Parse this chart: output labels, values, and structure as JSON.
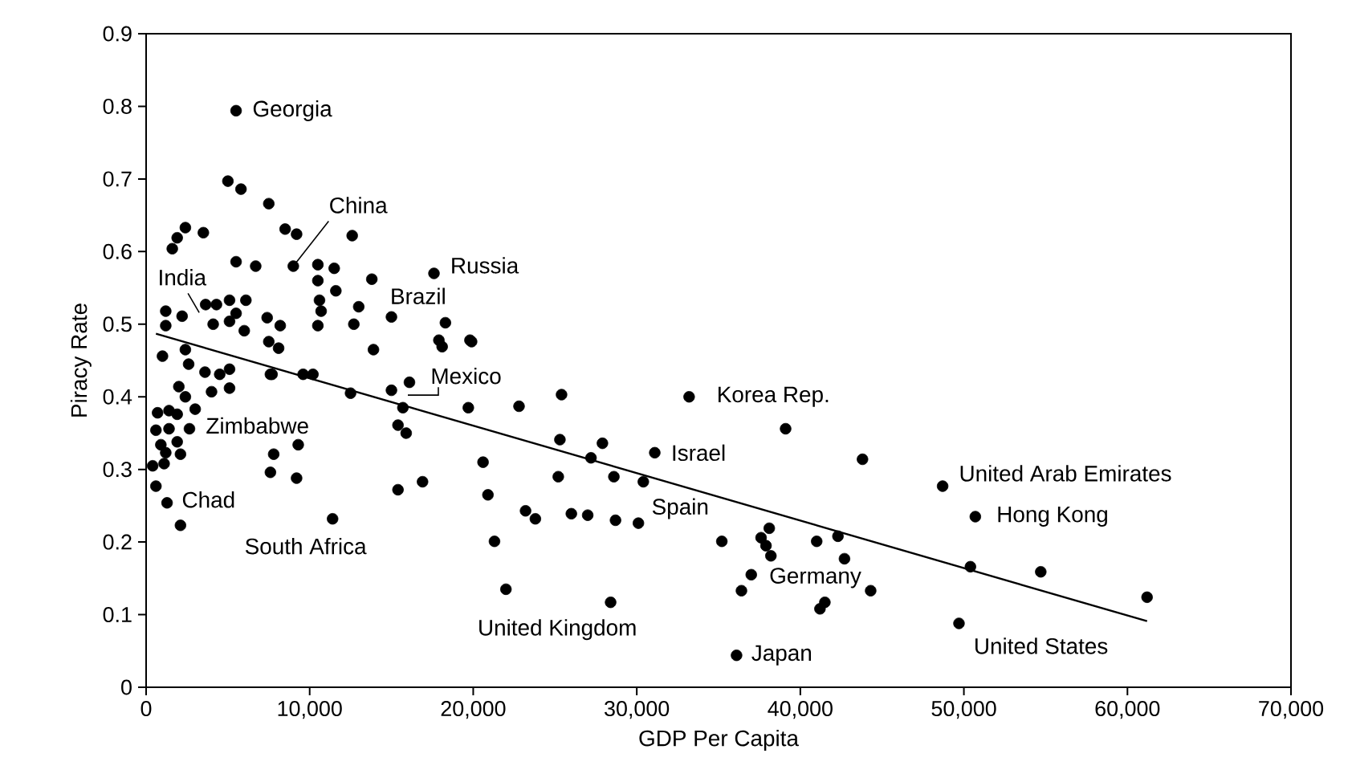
{
  "chart_data": {
    "type": "scatter",
    "xlabel": "GDP Per Capita",
    "ylabel": "Piracy Rate",
    "xlim": [
      0,
      70000
    ],
    "ylim": [
      0,
      0.9
    ],
    "xticks": [
      0,
      {
        "value": 10000,
        "label": "10,000"
      },
      {
        "value": 20000,
        "label": "20,000"
      },
      {
        "value": 30000,
        "label": "30,000"
      },
      {
        "value": 40000,
        "label": "40,000"
      },
      {
        "value": 50000,
        "label": "50,000"
      },
      {
        "value": 60000,
        "label": "60,000"
      },
      {
        "value": 70000,
        "label": "70,000"
      }
    ],
    "yticks": [
      0,
      0.1,
      0.2,
      0.3,
      0.4,
      0.5,
      0.6,
      0.7,
      0.8,
      0.9
    ],
    "grid": false,
    "series": [
      {
        "type": "scatter",
        "color": "#000000",
        "marker": "circle",
        "x": [
          5500,
          9000,
          17600,
          3640,
          15000,
          16100,
          2650,
          1280,
          11400,
          28400,
          36100,
          33200,
          31100,
          30100,
          37000,
          48700,
          50700,
          49700,
          50400,
          54700,
          61200,
          44300,
          19900,
          19700,
          22800,
          25400,
          25300,
          27900,
          27200,
          20600,
          25200,
          28600,
          30400,
          20900,
          23200,
          23800,
          26000,
          27000,
          28700,
          21300,
          22000,
          35200,
          38100,
          37600,
          37900,
          38200,
          41000,
          42300,
          42700,
          36400,
          39100,
          43800,
          41500,
          41200,
          5000,
          5800,
          7500,
          8500,
          9200,
          12600,
          2400,
          3500,
          1900,
          1600,
          5500,
          6700,
          10500,
          11500,
          10500,
          11600,
          13800,
          10600,
          10700,
          10500,
          13000,
          12700,
          18300,
          17900,
          19800,
          18100,
          13900,
          1200,
          2200,
          4300,
          5100,
          6100,
          4100,
          5100,
          6000,
          7400,
          8200,
          5500,
          1200,
          1000,
          2400,
          2600,
          3600,
          4500,
          5100,
          7500,
          8100,
          7700,
          9600,
          10200,
          2000,
          2400,
          4000,
          5100,
          7600,
          12500,
          15000,
          15700,
          15400,
          15900,
          700,
          1400,
          1900,
          3000,
          600,
          1400,
          900,
          1900,
          1200,
          2100,
          400,
          1100,
          600,
          2100,
          7800,
          9300,
          7600,
          9200,
          15400,
          16900
        ],
        "values": [
          0.794,
          0.58,
          0.57,
          0.527,
          0.51,
          0.42,
          0.356,
          0.254,
          0.232,
          0.117,
          0.044,
          0.4,
          0.323,
          0.226,
          0.155,
          0.277,
          0.235,
          0.088,
          0.166,
          0.159,
          0.124,
          0.133,
          0.476,
          0.385,
          0.387,
          0.403,
          0.341,
          0.336,
          0.316,
          0.31,
          0.29,
          0.29,
          0.283,
          0.265,
          0.243,
          0.232,
          0.239,
          0.237,
          0.23,
          0.201,
          0.135,
          0.201,
          0.219,
          0.206,
          0.195,
          0.181,
          0.201,
          0.208,
          0.177,
          0.133,
          0.356,
          0.314,
          0.117,
          0.108,
          0.697,
          0.686,
          0.666,
          0.631,
          0.624,
          0.622,
          0.633,
          0.626,
          0.619,
          0.604,
          0.586,
          0.58,
          0.582,
          0.577,
          0.56,
          0.546,
          0.562,
          0.533,
          0.518,
          0.498,
          0.524,
          0.5,
          0.502,
          0.478,
          0.478,
          0.469,
          0.465,
          0.518,
          0.511,
          0.527,
          0.533,
          0.533,
          0.5,
          0.504,
          0.491,
          0.509,
          0.498,
          0.515,
          0.498,
          0.456,
          0.465,
          0.445,
          0.434,
          0.431,
          0.438,
          0.476,
          0.467,
          0.431,
          0.431,
          0.431,
          0.414,
          0.4,
          0.407,
          0.412,
          0.431,
          0.405,
          0.409,
          0.385,
          0.361,
          0.35,
          0.378,
          0.381,
          0.376,
          0.383,
          0.354,
          0.356,
          0.334,
          0.338,
          0.323,
          0.321,
          0.305,
          0.308,
          0.277,
          0.223,
          0.321,
          0.334,
          0.296,
          0.288,
          0.272,
          0.283
        ]
      },
      {
        "type": "line",
        "color": "#000000",
        "x": [
          600,
          61200
        ],
        "values": [
          0.487,
          0.091
        ]
      }
    ],
    "annotations": [
      {
        "text": "Georgia",
        "x": 5500,
        "y": 0.794
      },
      {
        "text": "China",
        "x": 9000,
        "y": 0.58
      },
      {
        "text": "Russia",
        "x": 17600,
        "y": 0.57
      },
      {
        "text": "India",
        "x": 3640,
        "y": 0.527
      },
      {
        "text": "Brazil",
        "x": 15000,
        "y": 0.51
      },
      {
        "text": "Mexico",
        "x": 16100,
        "y": 0.42
      },
      {
        "text": "Zimbabwe",
        "x": 2650,
        "y": 0.356
      },
      {
        "text": "Chad",
        "x": 1280,
        "y": 0.254
      },
      {
        "text": "South Africa",
        "x": 11400,
        "y": 0.232
      },
      {
        "text": "United Kingdom",
        "x": 28400,
        "y": 0.117
      },
      {
        "text": "Japan",
        "x": 36100,
        "y": 0.044
      },
      {
        "text": "Korea Rep.",
        "x": 33200,
        "y": 0.4
      },
      {
        "text": "Israel",
        "x": 31100,
        "y": 0.323
      },
      {
        "text": "Spain",
        "x": 30100,
        "y": 0.226
      },
      {
        "text": "Germany",
        "x": 37000,
        "y": 0.155
      },
      {
        "text": "United Arab Emirates",
        "x": 48700,
        "y": 0.277
      },
      {
        "text": "Hong Kong",
        "x": 50700,
        "y": 0.235
      },
      {
        "text": "United States",
        "x": 49700,
        "y": 0.088
      }
    ]
  }
}
